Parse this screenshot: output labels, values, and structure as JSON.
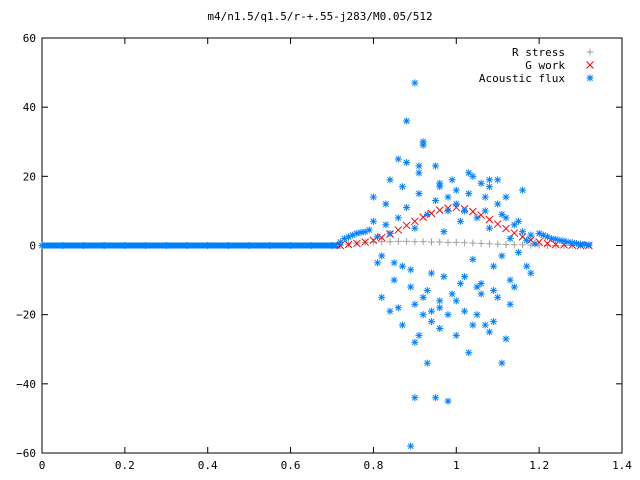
{
  "chart_data": {
    "type": "scatter",
    "title": "m4/n1.5/q1.5/r-+.55-j283/M0.05/512",
    "xlabel": "",
    "ylabel": "",
    "xlim": [
      0,
      1.4
    ],
    "ylim": [
      -60,
      60
    ],
    "x_ticks": [
      "0",
      "0.2",
      "0.4",
      "0.6",
      "0.8",
      "1",
      "1.2",
      "1.4"
    ],
    "y_ticks": [
      "60",
      "40",
      "20",
      "0",
      "−20",
      "−40",
      "−60"
    ],
    "x_tick_values": [
      0,
      0.2,
      0.4,
      0.6,
      0.8,
      1.0,
      1.2,
      1.4
    ],
    "y_tick_values": [
      60,
      40,
      20,
      0,
      -20,
      -40,
      -60
    ],
    "legend_position": "top-right",
    "grid": false,
    "series": [
      {
        "name": "R stress",
        "marker": "+",
        "color": "#a0a0a0",
        "x": [
          0.72,
          0.74,
          0.76,
          0.78,
          0.8,
          0.82,
          0.84,
          0.86,
          0.88,
          0.9,
          0.92,
          0.94,
          0.96,
          0.98,
          1.0,
          1.02,
          1.04,
          1.06,
          1.08,
          1.1,
          1.12,
          1.14,
          1.16,
          1.18,
          1.2,
          1.22,
          1.24,
          1.26,
          1.28,
          1.3,
          1.32
        ],
        "y": [
          0,
          0.4,
          0.7,
          0.9,
          1.0,
          1.1,
          1.1,
          1.2,
          1.2,
          1.1,
          1.1,
          1.0,
          1.0,
          0.9,
          0.9,
          0.8,
          0.7,
          0.6,
          0.5,
          0.4,
          0.3,
          0.2,
          0.2,
          0.1,
          0.1,
          0,
          0,
          0,
          0,
          0,
          0
        ]
      },
      {
        "name": "G work",
        "marker": "x",
        "color": "#ff0000",
        "x": [
          0.72,
          0.74,
          0.76,
          0.78,
          0.8,
          0.82,
          0.84,
          0.86,
          0.88,
          0.9,
          0.92,
          0.94,
          0.96,
          0.98,
          1.0,
          1.02,
          1.04,
          1.06,
          1.08,
          1.1,
          1.12,
          1.14,
          1.16,
          1.18,
          1.2,
          1.22,
          1.24,
          1.26,
          1.28,
          1.3,
          1.32
        ],
        "y": [
          0,
          0.3,
          0.6,
          1.0,
          1.5,
          2.3,
          3.3,
          4.5,
          5.8,
          7.0,
          8.2,
          9.3,
          10.2,
          10.8,
          11.0,
          10.6,
          9.8,
          8.8,
          7.5,
          6.2,
          4.9,
          3.6,
          2.5,
          1.6,
          1.0,
          0.6,
          0.3,
          0.2,
          0.1,
          0,
          0
        ]
      },
      {
        "name": "Acoustic flux",
        "marker": "*",
        "color": "#0080ff",
        "x": [
          0.0,
          0.05,
          0.1,
          0.15,
          0.2,
          0.25,
          0.3,
          0.35,
          0.4,
          0.45,
          0.5,
          0.55,
          0.6,
          0.65,
          0.7,
          0.72,
          0.73,
          0.74,
          0.75,
          0.76,
          0.77,
          0.78,
          0.79,
          0.8,
          0.81,
          0.82,
          0.83,
          0.84,
          0.85,
          0.86,
          0.87,
          0.88,
          0.89,
          0.9,
          0.91,
          0.92,
          0.93,
          0.94,
          0.95,
          0.96,
          0.97,
          0.98,
          0.99,
          1.0,
          1.01,
          1.02,
          1.03,
          1.04,
          1.05,
          1.06,
          1.07,
          1.08,
          1.09,
          1.1,
          1.11,
          1.12,
          1.13,
          1.14,
          1.15,
          1.16,
          1.17,
          1.18,
          1.19,
          1.2,
          1.21,
          1.22,
          1.23,
          1.24,
          1.25,
          1.26,
          1.27,
          1.28,
          1.29,
          1.3,
          1.31,
          1.32,
          0.8,
          0.82,
          0.84,
          0.86,
          0.88,
          0.9,
          0.92,
          0.94,
          0.96,
          0.98,
          1.0,
          1.02,
          1.04,
          1.06,
          1.08,
          1.1,
          1.12,
          1.14,
          1.16,
          1.18,
          0.81,
          0.83,
          0.85,
          0.87,
          0.89,
          0.91,
          0.93,
          0.95,
          0.97,
          0.99,
          1.01,
          1.03,
          1.05,
          1.07,
          1.09,
          1.11,
          1.13,
          1.15,
          1.17,
          0.86,
          0.88,
          0.9,
          0.92,
          0.94,
          0.96,
          0.98,
          1.0,
          1.02,
          1.04,
          1.06,
          1.08,
          1.1,
          1.12,
          0.9,
          0.93,
          0.95,
          0.98,
          1.03,
          1.07,
          1.11,
          0.84,
          0.87,
          0.91,
          0.96,
          1.0,
          1.05,
          1.09,
          1.13,
          0.89,
          0.9,
          0.91,
          0.96,
          0.92,
          1.08
        ],
        "y": [
          0,
          0,
          0,
          0,
          0,
          0,
          0,
          0,
          0,
          0,
          0,
          0,
          0,
          0,
          0,
          1.0,
          2.0,
          2.5,
          3.0,
          3.5,
          3.8,
          4.0,
          4.5,
          7.0,
          2.5,
          -3.0,
          6.0,
          3.5,
          -5.0,
          8.0,
          -6.0,
          11.0,
          -12.0,
          5.0,
          15.0,
          -20.0,
          9.0,
          -8.0,
          13.0,
          -16.0,
          4.0,
          10.0,
          -14.0,
          12.0,
          7.0,
          -9.0,
          15.0,
          -4.0,
          8.0,
          -11.0,
          10.0,
          5.0,
          -6.0,
          12.0,
          -3.0,
          8.0,
          2.0,
          6.0,
          -2.0,
          4.0,
          1.5,
          3.0,
          0.5,
          3.5,
          3.0,
          2.5,
          2.0,
          1.8,
          1.5,
          1.3,
          1.0,
          0.8,
          0.6,
          0.4,
          0.3,
          0.2,
          14.0,
          -15.0,
          19.0,
          -18.0,
          24.0,
          -17.0,
          29.0,
          -22.0,
          18.0,
          -20.0,
          16.0,
          -19.0,
          20.0,
          -14.0,
          17.0,
          -15.0,
          14.0,
          -12.0,
          16.0,
          -8.0,
          -5.0,
          12.0,
          -10.0,
          17.0,
          -7.0,
          21.0,
          -13.0,
          23.0,
          -9.0,
          19.0,
          -11.0,
          21.0,
          -12.0,
          14.0,
          -13.0,
          9.0,
          -10.0,
          7.0,
          -6.0,
          25.0,
          36.0,
          -28.0,
          30.0,
          -19.0,
          -24.0,
          14.0,
          -26.0,
          10.0,
          -23.0,
          18.0,
          -25.0,
          19.0,
          -27.0,
          47.0,
          -34.0,
          -44.0,
          -45.0,
          -31.0,
          -23.0,
          -34.0,
          -19.0,
          -23.0,
          -26.0,
          -18.0,
          -16.0,
          -20.0,
          -22.0,
          -17.0,
          -58.0,
          -44.0,
          23.0,
          17.0,
          -15.0,
          19.0
        ]
      }
    ]
  }
}
